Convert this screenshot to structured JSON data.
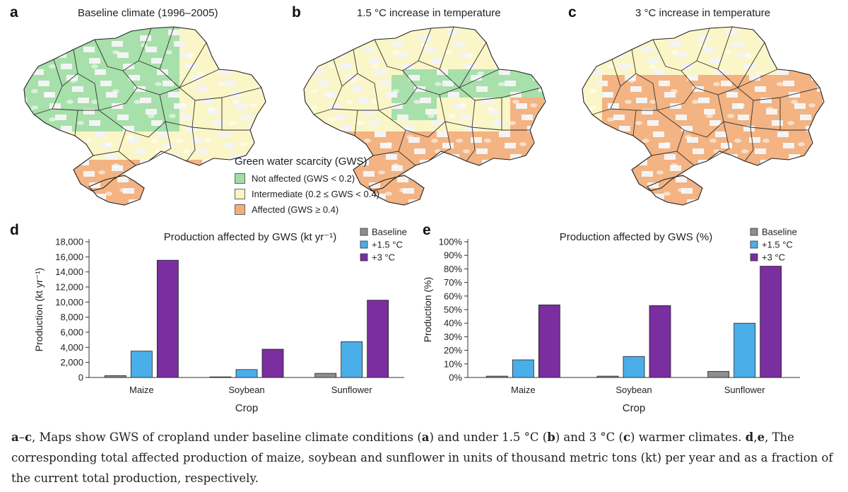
{
  "maps": {
    "a": {
      "letter": "a",
      "title": "Baseline climate (1996–2005)"
    },
    "b": {
      "letter": "b",
      "title": "1.5 °C increase in temperature"
    },
    "c": {
      "letter": "c",
      "title": "3 °C increase in temperature"
    }
  },
  "map_legend": {
    "title": "Green water scarcity (GWS)",
    "items": [
      {
        "label": "Not affected (GWS < 0.2)",
        "color": "#9fdda3"
      },
      {
        "label": "Intermediate (0.2 ≤ GWS < 0.4)",
        "color": "#fbf5c2"
      },
      {
        "label": "Affected (GWS ≥ 0.4)",
        "color": "#f2ad77"
      }
    ]
  },
  "chart_data": [
    {
      "letter": "d",
      "type": "bar",
      "title": "Production affected by GWS (kt yr⁻¹)",
      "xlabel": "Crop",
      "ylabel": "Production (kt yr⁻¹)",
      "categories": [
        "Maize",
        "Soybean",
        "Sunflower"
      ],
      "ylim": [
        0,
        18000
      ],
      "ytick_values": [
        0,
        2000,
        4000,
        6000,
        8000,
        10000,
        12000,
        14000,
        16000,
        18000
      ],
      "ytick_labels": [
        "0",
        "2,000",
        "4,000",
        "6,000",
        "8,000",
        "10,000",
        "12,000",
        "14,000",
        "16,000",
        "18,000"
      ],
      "series": [
        {
          "name": "Baseline",
          "color": "#8e8e8e",
          "values": [
            250,
            80,
            550
          ]
        },
        {
          "name": "+1.5 °C",
          "color": "#4aaee9",
          "values": [
            3500,
            1050,
            4750
          ]
        },
        {
          "name": "+3 °C",
          "color": "#7a2e9f",
          "values": [
            15550,
            3750,
            10250
          ]
        }
      ]
    },
    {
      "letter": "e",
      "type": "bar",
      "title": "Production affected by GWS (%)",
      "xlabel": "Crop",
      "ylabel": "Production (%)",
      "categories": [
        "Maize",
        "Soybean",
        "Sunflower"
      ],
      "ylim": [
        0,
        100
      ],
      "ytick_values": [
        0,
        10,
        20,
        30,
        40,
        50,
        60,
        70,
        80,
        90,
        100
      ],
      "ytick_labels": [
        "0%",
        "10%",
        "20%",
        "30%",
        "40%",
        "50%",
        "60%",
        "70%",
        "80%",
        "90%",
        "100%"
      ],
      "series": [
        {
          "name": "Baseline",
          "color": "#8e8e8e",
          "values": [
            1,
            1,
            4.5
          ]
        },
        {
          "name": "+1.5 °C",
          "color": "#4aaee9",
          "values": [
            13,
            15.5,
            40
          ]
        },
        {
          "name": "+3 °C",
          "color": "#7a2e9f",
          "values": [
            53.5,
            53,
            82
          ]
        }
      ]
    }
  ],
  "caption": {
    "parts": [
      {
        "text": "a",
        "bold": true
      },
      {
        "text": "–",
        "bold": false
      },
      {
        "text": "c",
        "bold": true
      },
      {
        "text": ", Maps show GWS of cropland under baseline climate conditions (",
        "bold": false
      },
      {
        "text": "a",
        "bold": true
      },
      {
        "text": ") and under 1.5 °C (",
        "bold": false
      },
      {
        "text": "b",
        "bold": true
      },
      {
        "text": ") and 3 °C (",
        "bold": false
      },
      {
        "text": "c",
        "bold": true
      },
      {
        "text": ") warmer climates. ",
        "bold": false
      },
      {
        "text": "d",
        "bold": true
      },
      {
        "text": ",",
        "bold": false
      },
      {
        "text": "e",
        "bold": true
      },
      {
        "text": ", The corresponding total affected production of maize, soybean and sunflower in units of thousand metric tons (kt) per year and as a fraction of the current total production, respectively.",
        "bold": false
      }
    ]
  }
}
